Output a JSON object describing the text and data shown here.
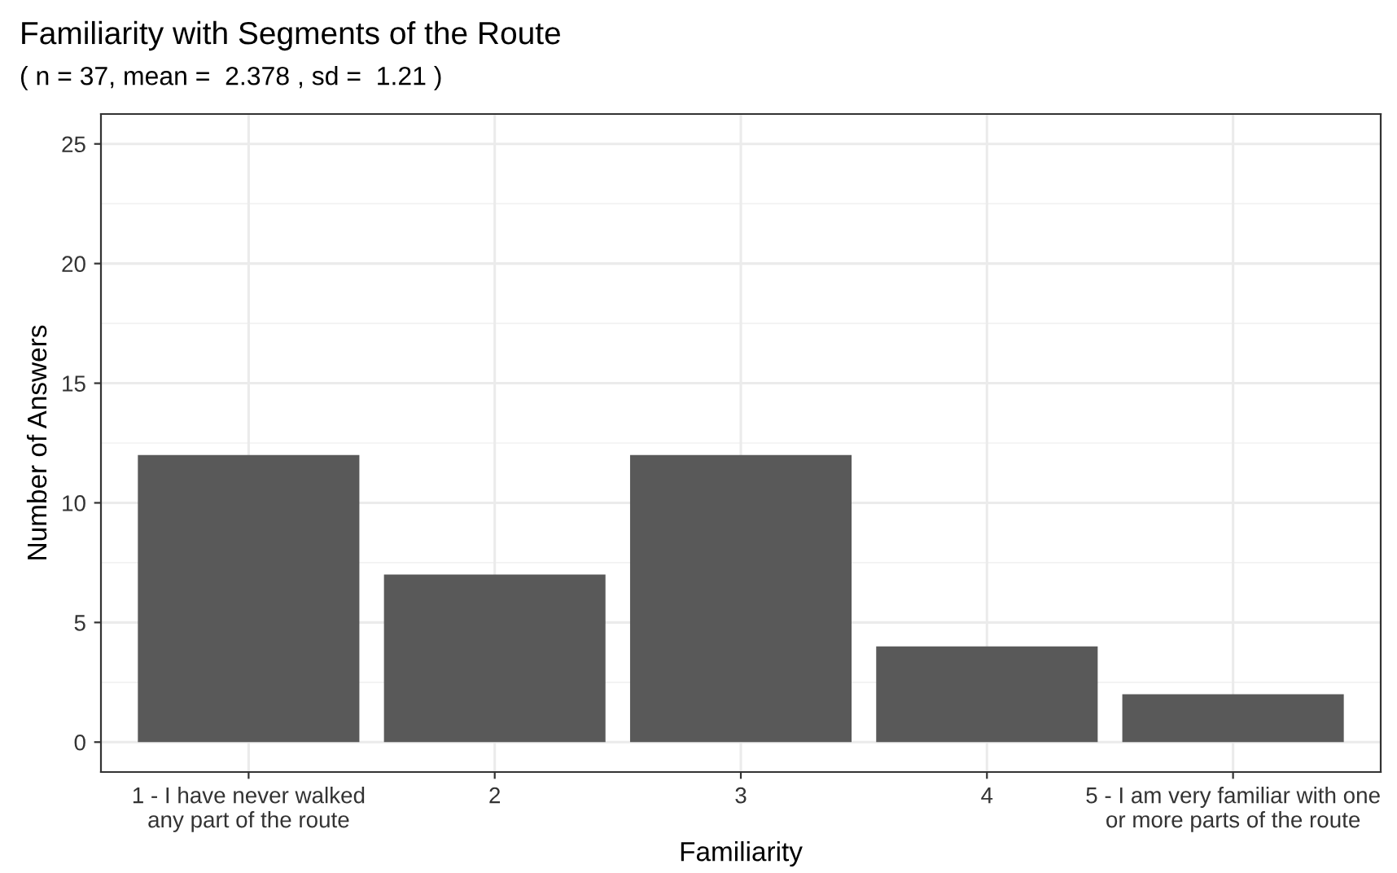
{
  "chart_data": {
    "type": "bar",
    "title": "Familiarity with Segments of the Route",
    "subtitle": "( n = 37, mean =  2.378 , sd =  1.21 )",
    "xlabel": "Familiarity",
    "ylabel": "Number of Answers",
    "categories": [
      "1 - I have never walked\nany part of the route",
      "2",
      "3",
      "4",
      "5 - I am very familiar with one\nor more parts of the route"
    ],
    "values": [
      12,
      7,
      12,
      4,
      2
    ],
    "color": "#595959",
    "ylim": [
      -1.25,
      26.25
    ],
    "yticks": [
      0,
      5,
      10,
      15,
      20,
      25
    ],
    "grid": true
  }
}
